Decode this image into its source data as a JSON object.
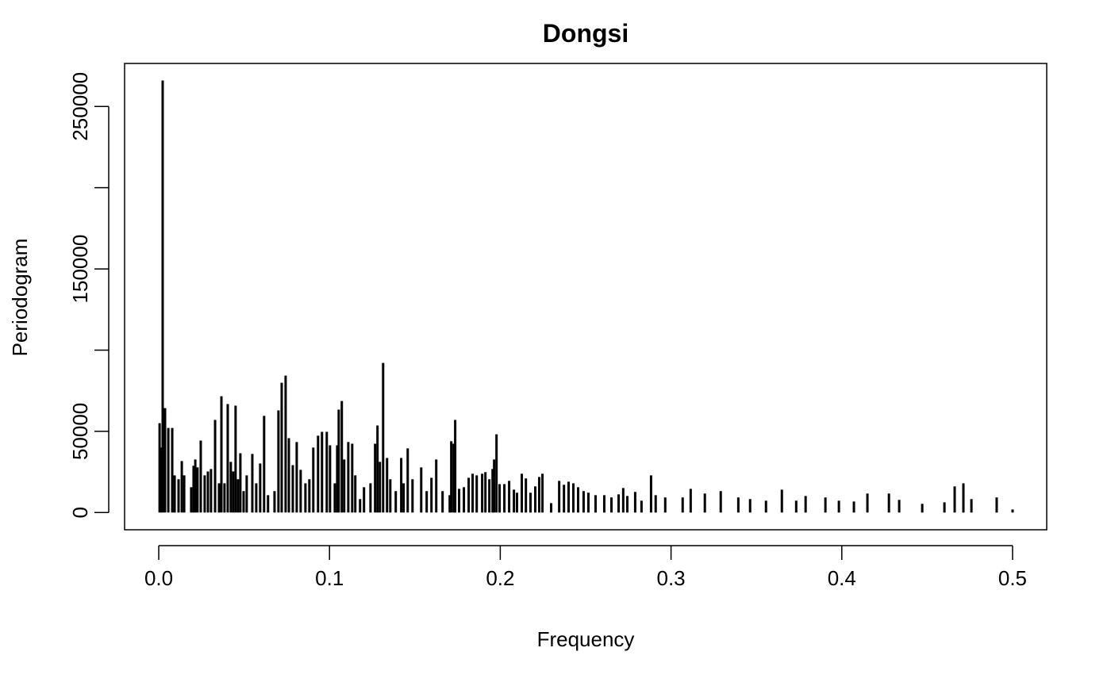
{
  "chart_data": {
    "type": "spike",
    "title": "Dongsi",
    "xlabel": "Frequency",
    "ylabel": "Periodogram",
    "color": "#000000",
    "x": [
      0.0005,
      0.0014,
      0.0023,
      0.0037,
      0.0056,
      0.0079,
      0.0093,
      0.0116,
      0.0135,
      0.0149,
      0.019,
      0.0204,
      0.0214,
      0.0227,
      0.0246,
      0.0269,
      0.0288,
      0.0306,
      0.033,
      0.0353,
      0.0367,
      0.0385,
      0.0404,
      0.0422,
      0.0436,
      0.045,
      0.0464,
      0.0478,
      0.0497,
      0.0515,
      0.0548,
      0.0571,
      0.0594,
      0.0617,
      0.064,
      0.0678,
      0.0701,
      0.072,
      0.0743,
      0.0762,
      0.0785,
      0.0808,
      0.0831,
      0.0859,
      0.0882,
      0.0905,
      0.0933,
      0.0956,
      0.0984,
      0.1003,
      0.1031,
      0.1045,
      0.1054,
      0.1072,
      0.1086,
      0.111,
      0.1133,
      0.1151,
      0.1179,
      0.1202,
      0.124,
      0.1267,
      0.1281,
      0.1295,
      0.1314,
      0.1337,
      0.1356,
      0.1388,
      0.142,
      0.1434,
      0.1458,
      0.1486,
      0.1537,
      0.1569,
      0.1597,
      0.1625,
      0.1662,
      0.1704,
      0.1713,
      0.1727,
      0.1736,
      0.1759,
      0.1787,
      0.1815,
      0.1838,
      0.1862,
      0.1894,
      0.1913,
      0.1936,
      0.1955,
      0.1964,
      0.1978,
      0.1996,
      0.2024,
      0.2052,
      0.208,
      0.2098,
      0.2126,
      0.215,
      0.2177,
      0.2205,
      0.2228,
      0.2247,
      0.2298,
      0.2345,
      0.2373,
      0.24,
      0.2428,
      0.2456,
      0.2488,
      0.2516,
      0.2558,
      0.2609,
      0.2651,
      0.2693,
      0.272,
      0.2744,
      0.279,
      0.2827,
      0.2883,
      0.291,
      0.2966,
      0.3068,
      0.3115,
      0.3198,
      0.3291,
      0.3394,
      0.3463,
      0.3556,
      0.3649,
      0.3733,
      0.3788,
      0.3904,
      0.3983,
      0.4071,
      0.415,
      0.4276,
      0.4336,
      0.4471,
      0.4601,
      0.4661,
      0.4712,
      0.4759,
      0.4907,
      0.5
    ],
    "values": [
      55000,
      40000,
      266000,
      64300,
      52100,
      52100,
      22900,
      20500,
      31700,
      22900,
      15600,
      28800,
      32700,
      27800,
      44300,
      22900,
      25300,
      26800,
      57000,
      18000,
      71600,
      18000,
      66800,
      31200,
      25300,
      65800,
      20500,
      36500,
      13200,
      22900,
      36100,
      18000,
      30200,
      59500,
      10700,
      13200,
      62900,
      79900,
      84300,
      45800,
      29200,
      43400,
      26300,
      18000,
      20500,
      40000,
      47300,
      49700,
      49700,
      41400,
      18000,
      41400,
      63400,
      68700,
      32700,
      43400,
      42400,
      22900,
      8300,
      15600,
      18000,
      42400,
      53600,
      31200,
      92100,
      33600,
      20500,
      13200,
      33600,
      18000,
      39500,
      20500,
      27800,
      13200,
      21400,
      32700,
      13200,
      10700,
      43900,
      42400,
      57000,
      14600,
      15600,
      21400,
      23900,
      22900,
      23900,
      24900,
      20500,
      26800,
      32700,
      48200,
      17500,
      17500,
      19500,
      14100,
      12200,
      23900,
      21000,
      12200,
      16100,
      21900,
      23900,
      5800,
      19500,
      17100,
      19000,
      18000,
      15600,
      13200,
      12200,
      10700,
      10700,
      9300,
      11200,
      15100,
      10200,
      12700,
      7300,
      22900,
      10700,
      9300,
      9300,
      14600,
      11700,
      13200,
      9300,
      8300,
      7300,
      14100,
      7300,
      10200,
      9300,
      7300,
      6800,
      11700,
      11700,
      7800,
      5400,
      6300,
      16100,
      18000,
      8300,
      9300,
      1900
    ],
    "xlim": [
      -0.02,
      0.52
    ],
    "ylim": [
      -10600,
      276500
    ],
    "xticks": [
      {
        "value": 0,
        "label": "0.0"
      },
      0.1,
      0.2,
      0.3,
      0.4,
      0.5
    ],
    "yticks": [
      0,
      50000,
      150000,
      250000
    ],
    "yticks_unlabeled": [
      100000,
      200000
    ]
  }
}
